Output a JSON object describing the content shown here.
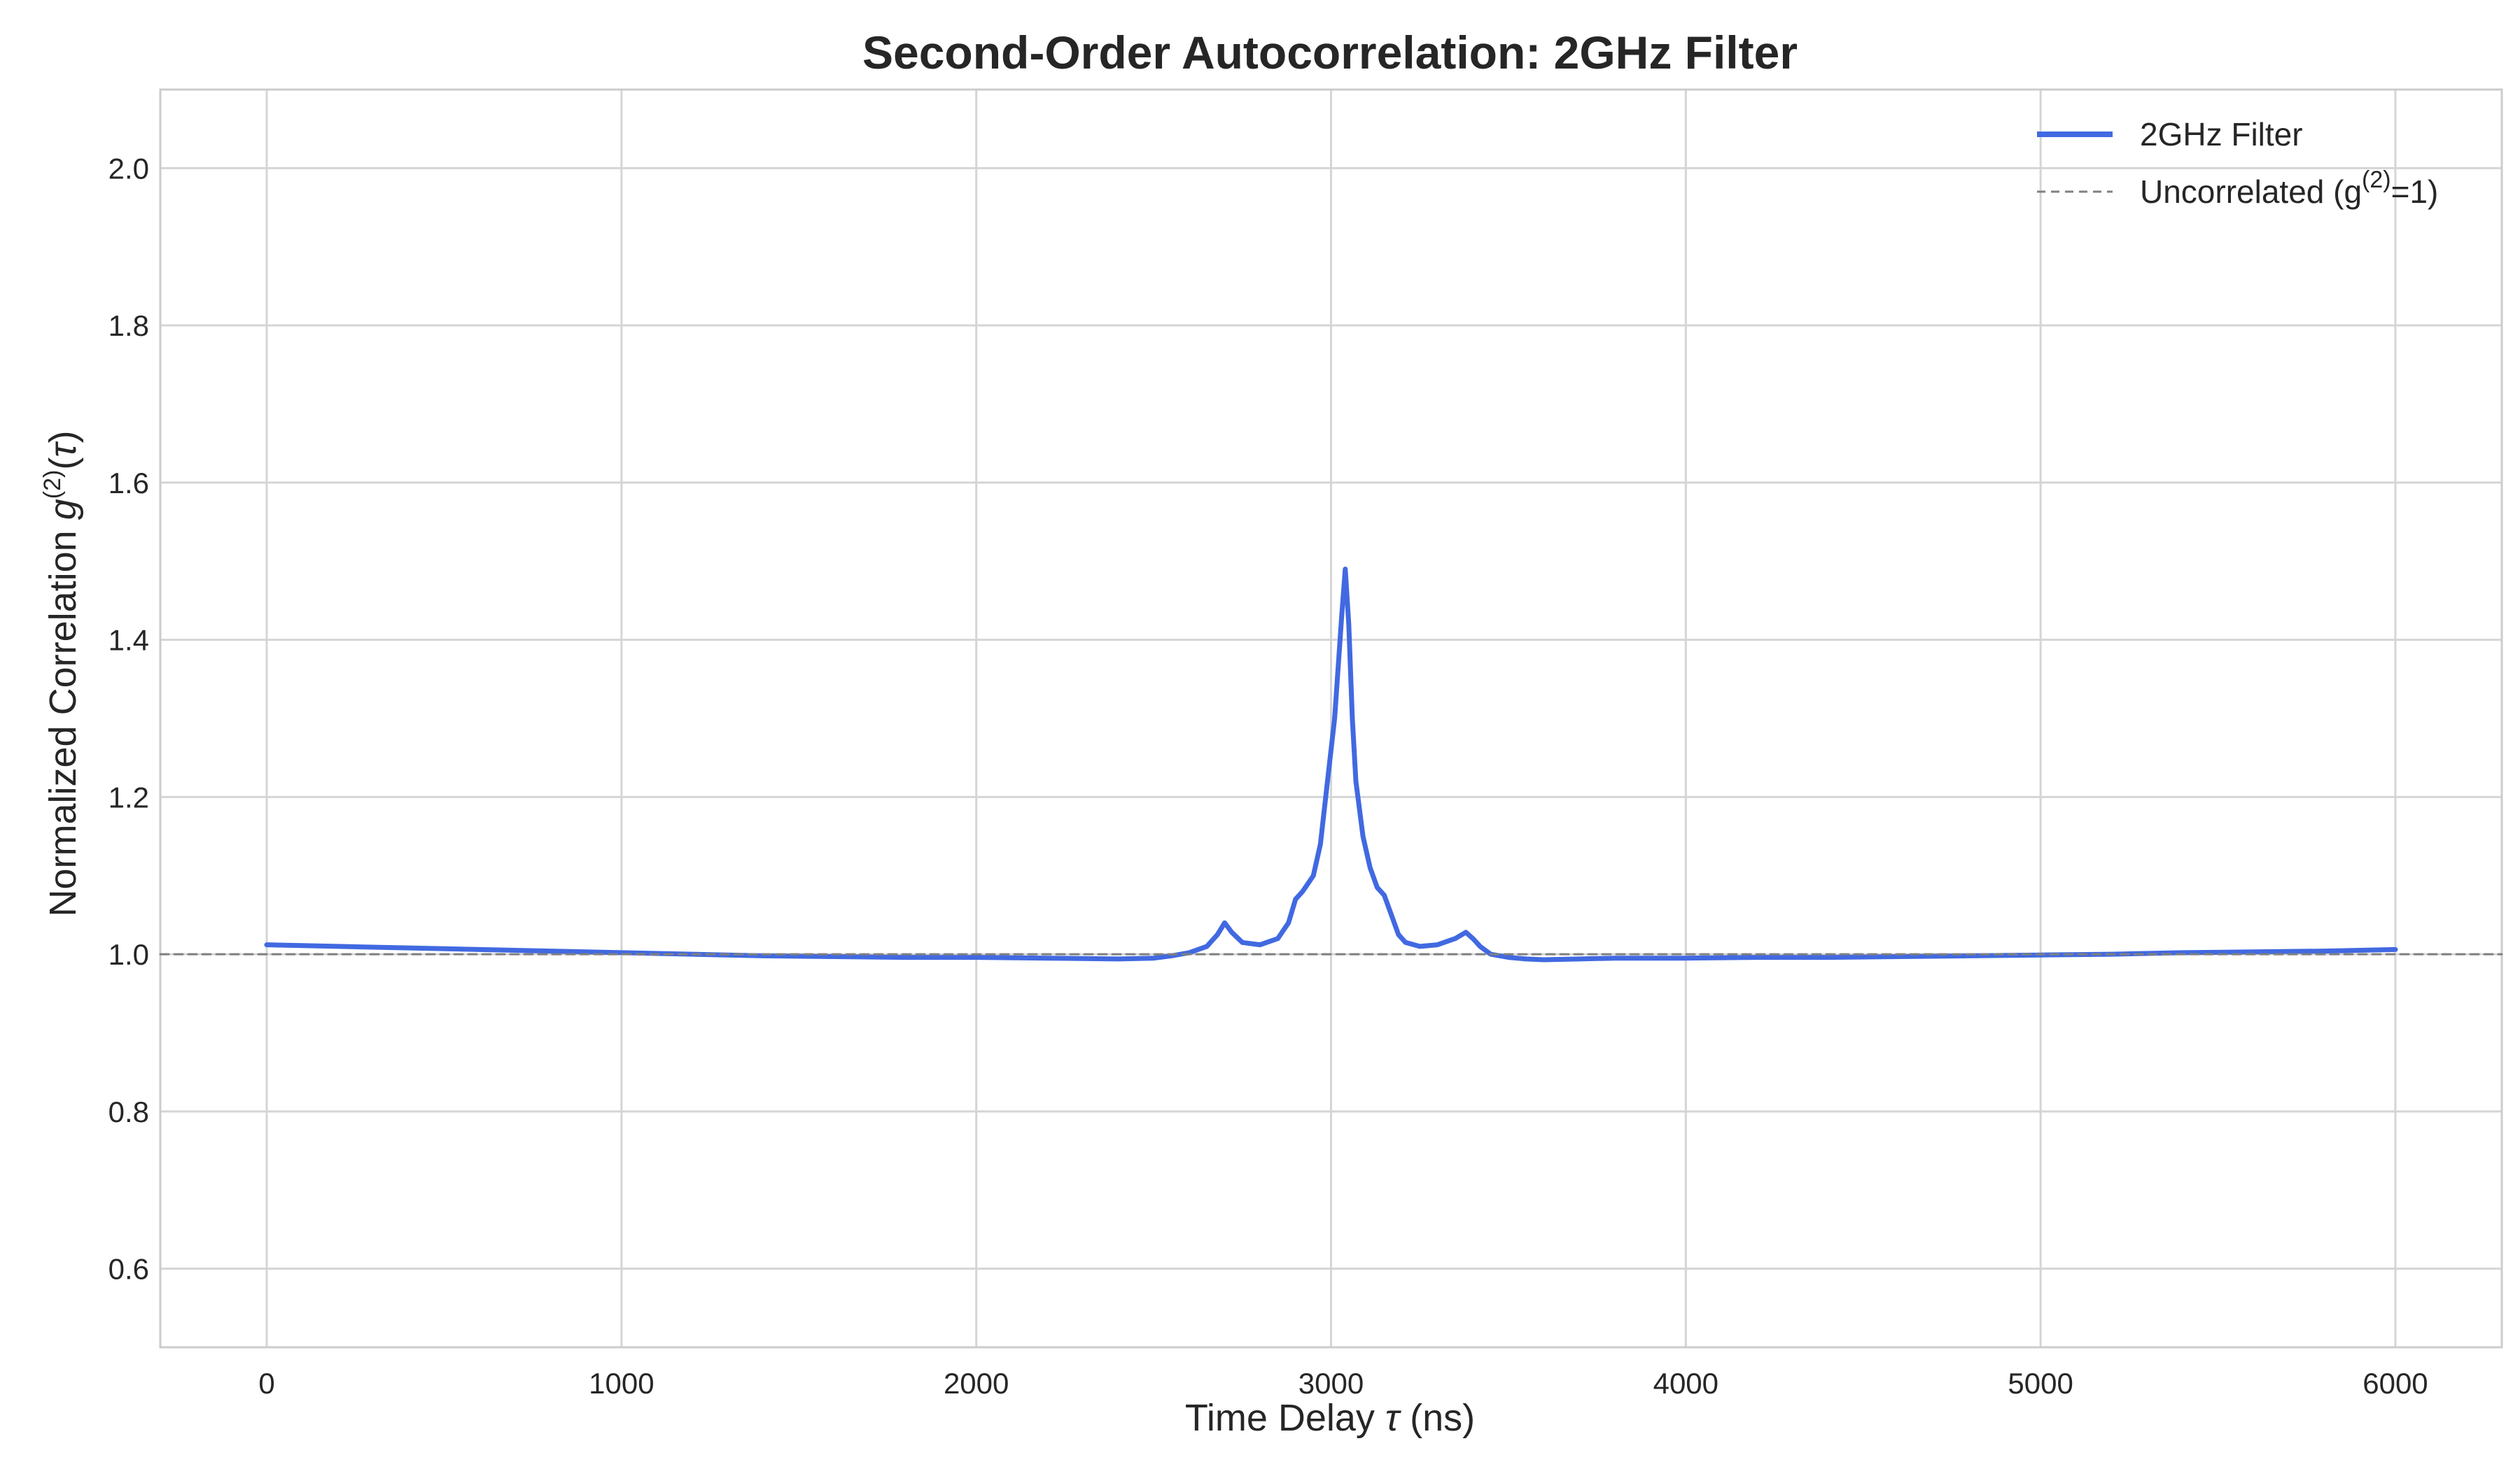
{
  "chart_data": {
    "type": "line",
    "title": "Second-Order Autocorrelation: 2GHz Filter",
    "xlabel": "Time Delay τ (ns)",
    "ylabel": "Normalized Correlation g(2)(τ)",
    "xlim": [
      -300,
      6300
    ],
    "ylim": [
      0.5,
      2.1
    ],
    "xticks": [
      0,
      1000,
      2000,
      3000,
      4000,
      5000,
      6000
    ],
    "yticks": [
      0.6,
      0.8,
      1.0,
      1.2,
      1.4,
      1.6,
      1.8,
      2.0
    ],
    "xtick_labels": [
      "0",
      "1000",
      "2000",
      "3000",
      "4000",
      "5000",
      "6000"
    ],
    "ytick_labels": [
      "0.6",
      "0.8",
      "1.0",
      "1.2",
      "1.4",
      "1.6",
      "1.8",
      "2.0"
    ],
    "grid": true,
    "legend_position": "top-right",
    "series": [
      {
        "name": "2GHz Filter",
        "color": "#4169e1",
        "style": "solid",
        "x": [
          0,
          200,
          400,
          600,
          800,
          1000,
          1200,
          1400,
          1600,
          1800,
          2000,
          2200,
          2400,
          2500,
          2550,
          2600,
          2650,
          2680,
          2700,
          2720,
          2750,
          2800,
          2850,
          2880,
          2900,
          2920,
          2950,
          2970,
          2990,
          3010,
          3030,
          3040,
          3050,
          3060,
          3070,
          3090,
          3110,
          3130,
          3150,
          3170,
          3190,
          3210,
          3250,
          3300,
          3350,
          3380,
          3400,
          3420,
          3450,
          3500,
          3550,
          3600,
          3700,
          3800,
          4000,
          4200,
          4400,
          4600,
          4800,
          5000,
          5200,
          5400,
          5600,
          5800,
          6000
        ],
        "y": [
          1.012,
          1.01,
          1.008,
          1.006,
          1.004,
          1.002,
          1.0,
          0.998,
          0.997,
          0.996,
          0.996,
          0.995,
          0.994,
          0.995,
          0.998,
          1.002,
          1.01,
          1.025,
          1.04,
          1.028,
          1.015,
          1.012,
          1.02,
          1.04,
          1.07,
          1.08,
          1.1,
          1.14,
          1.22,
          1.3,
          1.43,
          1.49,
          1.42,
          1.3,
          1.22,
          1.15,
          1.11,
          1.085,
          1.075,
          1.05,
          1.025,
          1.015,
          1.01,
          1.012,
          1.02,
          1.028,
          1.02,
          1.01,
          1.0,
          0.996,
          0.994,
          0.993,
          0.994,
          0.995,
          0.995,
          0.996,
          0.996,
          0.997,
          0.998,
          0.999,
          1.0,
          1.002,
          1.003,
          1.004,
          1.006
        ]
      },
      {
        "name": "Uncorrelated (g(2)=1)",
        "color": "#808080",
        "style": "dashed",
        "x": [
          -300,
          6300
        ],
        "y": [
          1.0,
          1.0
        ]
      }
    ]
  }
}
